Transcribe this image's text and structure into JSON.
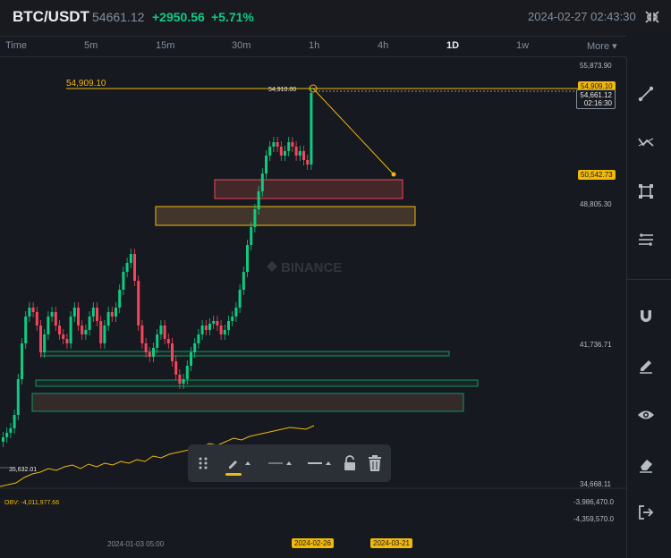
{
  "header": {
    "pair": "BTC/USDT",
    "price": "54661.12",
    "change_abs": "+2950.56",
    "change_pct": "+5.71%",
    "datetime": "2024-02-27 02:43:30"
  },
  "timeframes": [
    {
      "label": "Time",
      "active": false
    },
    {
      "label": "5m",
      "active": false
    },
    {
      "label": "15m",
      "active": false
    },
    {
      "label": "30m",
      "active": false
    },
    {
      "label": "1h",
      "active": false
    },
    {
      "label": "4h",
      "active": false
    },
    {
      "label": "1D",
      "active": true
    },
    {
      "label": "1w",
      "active": false
    },
    {
      "label": "More ▾",
      "active": false
    }
  ],
  "chart": {
    "watermark": "BINANCE",
    "drawn_level_label": "54,909.10",
    "high_label": "54,910.00",
    "low_label": "35,632.01",
    "current_price": "54,661.12",
    "countdown": "02:16:30",
    "target_price": "50,542.73",
    "yellow_tag": "54,909.10",
    "axis": {
      "top": "55,873.90",
      "mid1": "48,805.30",
      "mid2": "41,736.71",
      "bottom": "34,668.11",
      "obv_top": "-3,986,470.0",
      "obv_bottom": "-4,359,570.0"
    },
    "obv_label": "OBV: -4,011,977.66",
    "date_labels": {
      "left": "2024-01-03 05:00",
      "selected": "2024-02-26",
      "future": "2024-03-21"
    },
    "colors": {
      "up": "#0ecb81",
      "down": "#f6465d",
      "accent": "#f0b90b"
    }
  },
  "right_toolbar": [
    "trend-line-icon",
    "multi-line-icon",
    "rectangle-tool-icon",
    "fib-tool-icon",
    "magnet-icon",
    "pencil-icon",
    "eye-icon",
    "eraser-icon",
    "exit-icon"
  ],
  "float_toolbar": [
    "drag-handle-icon",
    "pen-color-icon",
    "line-width-icon",
    "line-style-icon",
    "lock-icon",
    "delete-icon"
  ]
}
